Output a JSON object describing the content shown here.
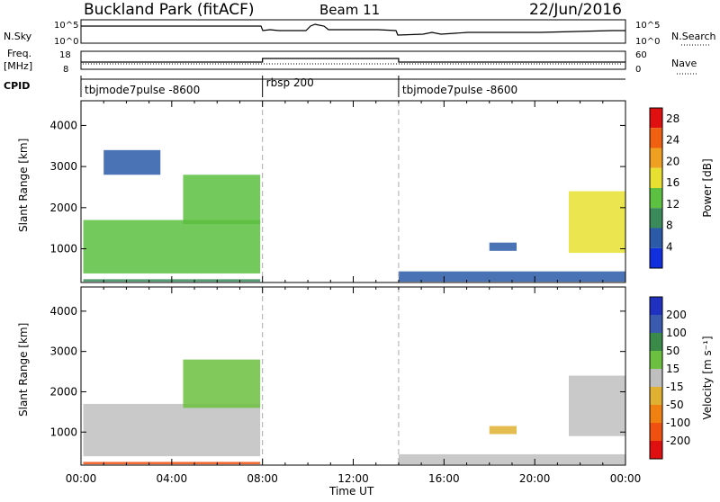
{
  "header": {
    "title": "Buckland Park (fitACF)",
    "beam": "Beam 11",
    "date": "22/Jun/2016"
  },
  "noise_panel": {
    "left_label": "N.Sky",
    "right_label": "N.Search",
    "left_ticks": [
      "10^5",
      "10^0"
    ],
    "right_ticks": [
      "10^5",
      "10^0"
    ]
  },
  "freq_panel": {
    "left_label_top": "Freq.",
    "left_label_bottom": "[MHz]",
    "left_ticks": [
      "18",
      "8"
    ],
    "right_label": "Nave",
    "right_ticks": [
      "60",
      "0"
    ],
    "freq_segments_mhz": [
      {
        "start_hour": 0,
        "end_hour": 8.0,
        "value": 12
      },
      {
        "start_hour": 8.0,
        "end_hour": 14.0,
        "value": 14
      },
      {
        "start_hour": 14.0,
        "end_hour": 24.0,
        "value": 12
      }
    ]
  },
  "cpid": {
    "label": "CPID",
    "segments": [
      {
        "start_hour": 0,
        "end_hour": 8.0,
        "name": "tbjmode7pulse -8600"
      },
      {
        "start_hour": 8.0,
        "end_hour": 14.0,
        "name": "rbsp 200"
      },
      {
        "start_hour": 14.0,
        "end_hour": 24.0,
        "name": "tbjmode7pulse -8600"
      }
    ]
  },
  "colors": {
    "power_scale": [
      "#1030e0",
      "#2a5aa8",
      "#3a8a5a",
      "#5cc040",
      "#e8e030",
      "#f0a020",
      "#f06010",
      "#e01010"
    ],
    "velocity_scale": [
      "#2030c0",
      "#3a5ab0",
      "#3a8a4a",
      "#6cc040",
      "#bfbfbf",
      "#e0b030",
      "#f08010",
      "#f05010",
      "#e01010"
    ],
    "ground_scatter": "#a0a0a0"
  },
  "chart_data": [
    {
      "type": "heatmap",
      "title": "Power",
      "xlabel": "Time UT",
      "ylabel": "Slant Range [km]",
      "x_ticks": [
        "00:00",
        "04:00",
        "08:00",
        "12:00",
        "16:00",
        "20:00",
        "00:00"
      ],
      "xlim_hours": [
        0,
        24
      ],
      "ylim_km": [
        180,
        4600
      ],
      "y_ticks": [
        1000,
        2000,
        3000,
        4000
      ],
      "colorbar": {
        "label": "Power [dB]",
        "ticks": [
          4,
          8,
          12,
          16,
          20,
          24,
          28
        ],
        "range": [
          0,
          30
        ]
      },
      "regions": [
        {
          "t0": 0.1,
          "t1": 7.9,
          "r0": 400,
          "r1": 1700,
          "level": 14
        },
        {
          "t0": 1.0,
          "t1": 3.5,
          "r0": 2800,
          "r1": 3400,
          "level": 5
        },
        {
          "t0": 4.5,
          "t1": 7.9,
          "r0": 1600,
          "r1": 2800,
          "level": 14
        },
        {
          "t0": 0.1,
          "t1": 7.9,
          "r0": 200,
          "r1": 260,
          "level": 10
        },
        {
          "t0": 14.0,
          "t1": 24.0,
          "r0": 200,
          "r1": 450,
          "level": 6
        },
        {
          "t0": 21.5,
          "t1": 24.0,
          "r0": 900,
          "r1": 2400,
          "level": 16
        },
        {
          "t0": 18.0,
          "t1": 19.2,
          "r0": 950,
          "r1": 1150,
          "level": 6
        }
      ]
    },
    {
      "type": "heatmap",
      "title": "Velocity",
      "xlabel": "Time UT",
      "ylabel": "Slant Range [km]",
      "x_ticks": [
        "00:00",
        "04:00",
        "08:00",
        "12:00",
        "16:00",
        "20:00",
        "00:00"
      ],
      "xlim_hours": [
        0,
        24
      ],
      "ylim_km": [
        180,
        4600
      ],
      "y_ticks": [
        1000,
        2000,
        3000,
        4000
      ],
      "colorbar": {
        "label": "Velocity [m s⁻¹]",
        "ticks": [
          200,
          100,
          50,
          15,
          -15,
          -50,
          -100,
          -200
        ],
        "range": [
          -250,
          250
        ]
      },
      "regions": [
        {
          "t0": 0.1,
          "t1": 7.9,
          "r0": 400,
          "r1": 1700,
          "level": 0
        },
        {
          "t0": 4.5,
          "t1": 7.9,
          "r0": 1600,
          "r1": 2800,
          "level": 30
        },
        {
          "t0": 0.1,
          "t1": 7.9,
          "r0": 200,
          "r1": 260,
          "level": -150
        },
        {
          "t0": 14.0,
          "t1": 24.0,
          "r0": 200,
          "r1": 450,
          "level": 25
        },
        {
          "t0": 21.5,
          "t1": 24.0,
          "r0": 900,
          "r1": 2400,
          "level": 0
        },
        {
          "t0": 18.0,
          "t1": 19.2,
          "r0": 950,
          "r1": 1150,
          "level": -60
        }
      ]
    }
  ]
}
